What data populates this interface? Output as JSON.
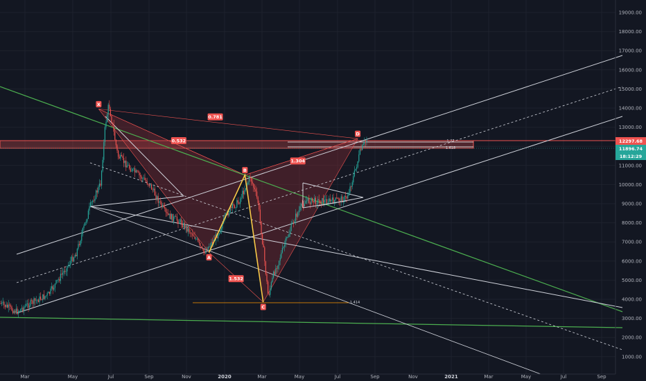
{
  "chart_data": {
    "type": "candlestick",
    "y_axis": {
      "side": "right",
      "ticks": [
        "19000.00",
        "18000.00",
        "17000.00",
        "16000.00",
        "15000.00",
        "14000.00",
        "13000.00",
        "12000.00",
        "11000.00",
        "10000.00",
        "9000.00",
        "8000.00",
        "7000.00",
        "6000.00",
        "5000.00",
        "4000.00",
        "3000.00",
        "2000.00",
        "1000.00"
      ]
    },
    "x_axis": {
      "ticks": [
        "Mar",
        "May",
        "Jul",
        "Sep",
        "Nov",
        "2020",
        "Mar",
        "May",
        "Jul",
        "Sep",
        "Nov",
        "2021",
        "Mar",
        "May",
        "Jul",
        "Sep"
      ],
      "bold_ticks": [
        "2020",
        "2021"
      ]
    },
    "price_labels": {
      "level": "12297.68",
      "last_price": "11896.74",
      "countdown": "18:12:29"
    },
    "pattern_points": [
      {
        "label": "X",
        "date": "2019-06-26",
        "price": 13950
      },
      {
        "label": "A",
        "date": "2019-12-18",
        "price": 6450
      },
      {
        "label": "B",
        "date": "2020-02-13",
        "price": 10500
      },
      {
        "label": "C",
        "date": "2020-03-13",
        "price": 3850
      },
      {
        "label": "D",
        "date": "2020-08-10",
        "price": 12400
      }
    ],
    "ratio_labels": [
      "0.781",
      "0.532",
      "1.304",
      "1.532"
    ],
    "small_labels": [
      "1.27",
      "1.618",
      "1.414"
    ],
    "colors": {
      "background": "#131722",
      "candle_up": "#26a69a",
      "candle_down": "#ef5350",
      "pattern_fill": "#7a2a30",
      "pattern_line": "#ef5350",
      "trend_green": "#4caf50",
      "trend_white": "#d1d4dc",
      "leg_yellow": "#f7c948",
      "level_orange": "#ff9800",
      "last_price_tag": "#26a69a",
      "level_tag": "#ef5350"
    }
  }
}
